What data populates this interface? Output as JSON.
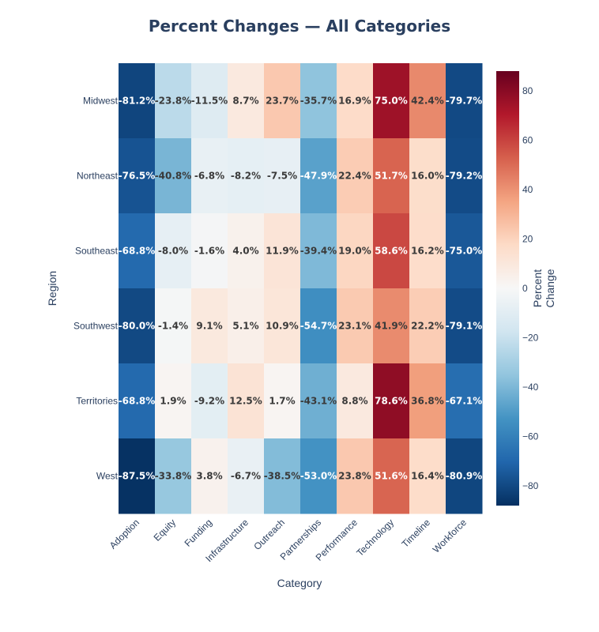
{
  "chart_data": {
    "type": "heatmap",
    "title": "Percent Changes — All Categories",
    "xlabel": "Category",
    "ylabel": "Region",
    "categories": [
      "Adoption",
      "Equity",
      "Funding",
      "Infrastructure",
      "Outreach",
      "Partnerships",
      "Performance",
      "Technology",
      "Timeline",
      "Workforce"
    ],
    "regions": [
      "Midwest",
      "Northeast",
      "Southeast",
      "Southwest",
      "Territories",
      "West"
    ],
    "values": [
      [
        -81.2,
        -23.8,
        -11.5,
        8.7,
        23.7,
        -35.7,
        16.9,
        75.0,
        42.4,
        -79.7
      ],
      [
        -76.5,
        -40.8,
        -6.8,
        -8.2,
        -7.5,
        -47.9,
        22.4,
        51.7,
        16.0,
        -79.2
      ],
      [
        -68.8,
        -8.0,
        -1.6,
        4.0,
        11.9,
        -39.4,
        19.0,
        58.6,
        16.2,
        -75.0
      ],
      [
        -80.0,
        -1.4,
        9.1,
        5.1,
        10.9,
        -54.7,
        23.1,
        41.9,
        22.2,
        -79.1
      ],
      [
        -68.8,
        1.9,
        -9.2,
        12.5,
        1.7,
        -43.1,
        8.8,
        78.6,
        36.8,
        -67.1
      ],
      [
        -87.5,
        -33.8,
        3.8,
        -6.7,
        -38.5,
        -53.0,
        23.8,
        51.6,
        16.4,
        -80.9
      ]
    ],
    "value_suffix": "%",
    "colorscale": "RdBu (reversed)",
    "zmin": -88,
    "zmax": 88,
    "colorbar": {
      "title": "Percent Change",
      "title_lines": [
        "Percent",
        "Change"
      ],
      "ticks": [
        80,
        60,
        40,
        20,
        0,
        -20,
        -40,
        -60,
        -80
      ],
      "tick_labels": [
        "80",
        "60",
        "40",
        "20",
        "0",
        "−20",
        "−40",
        "−60",
        "−80"
      ]
    }
  }
}
